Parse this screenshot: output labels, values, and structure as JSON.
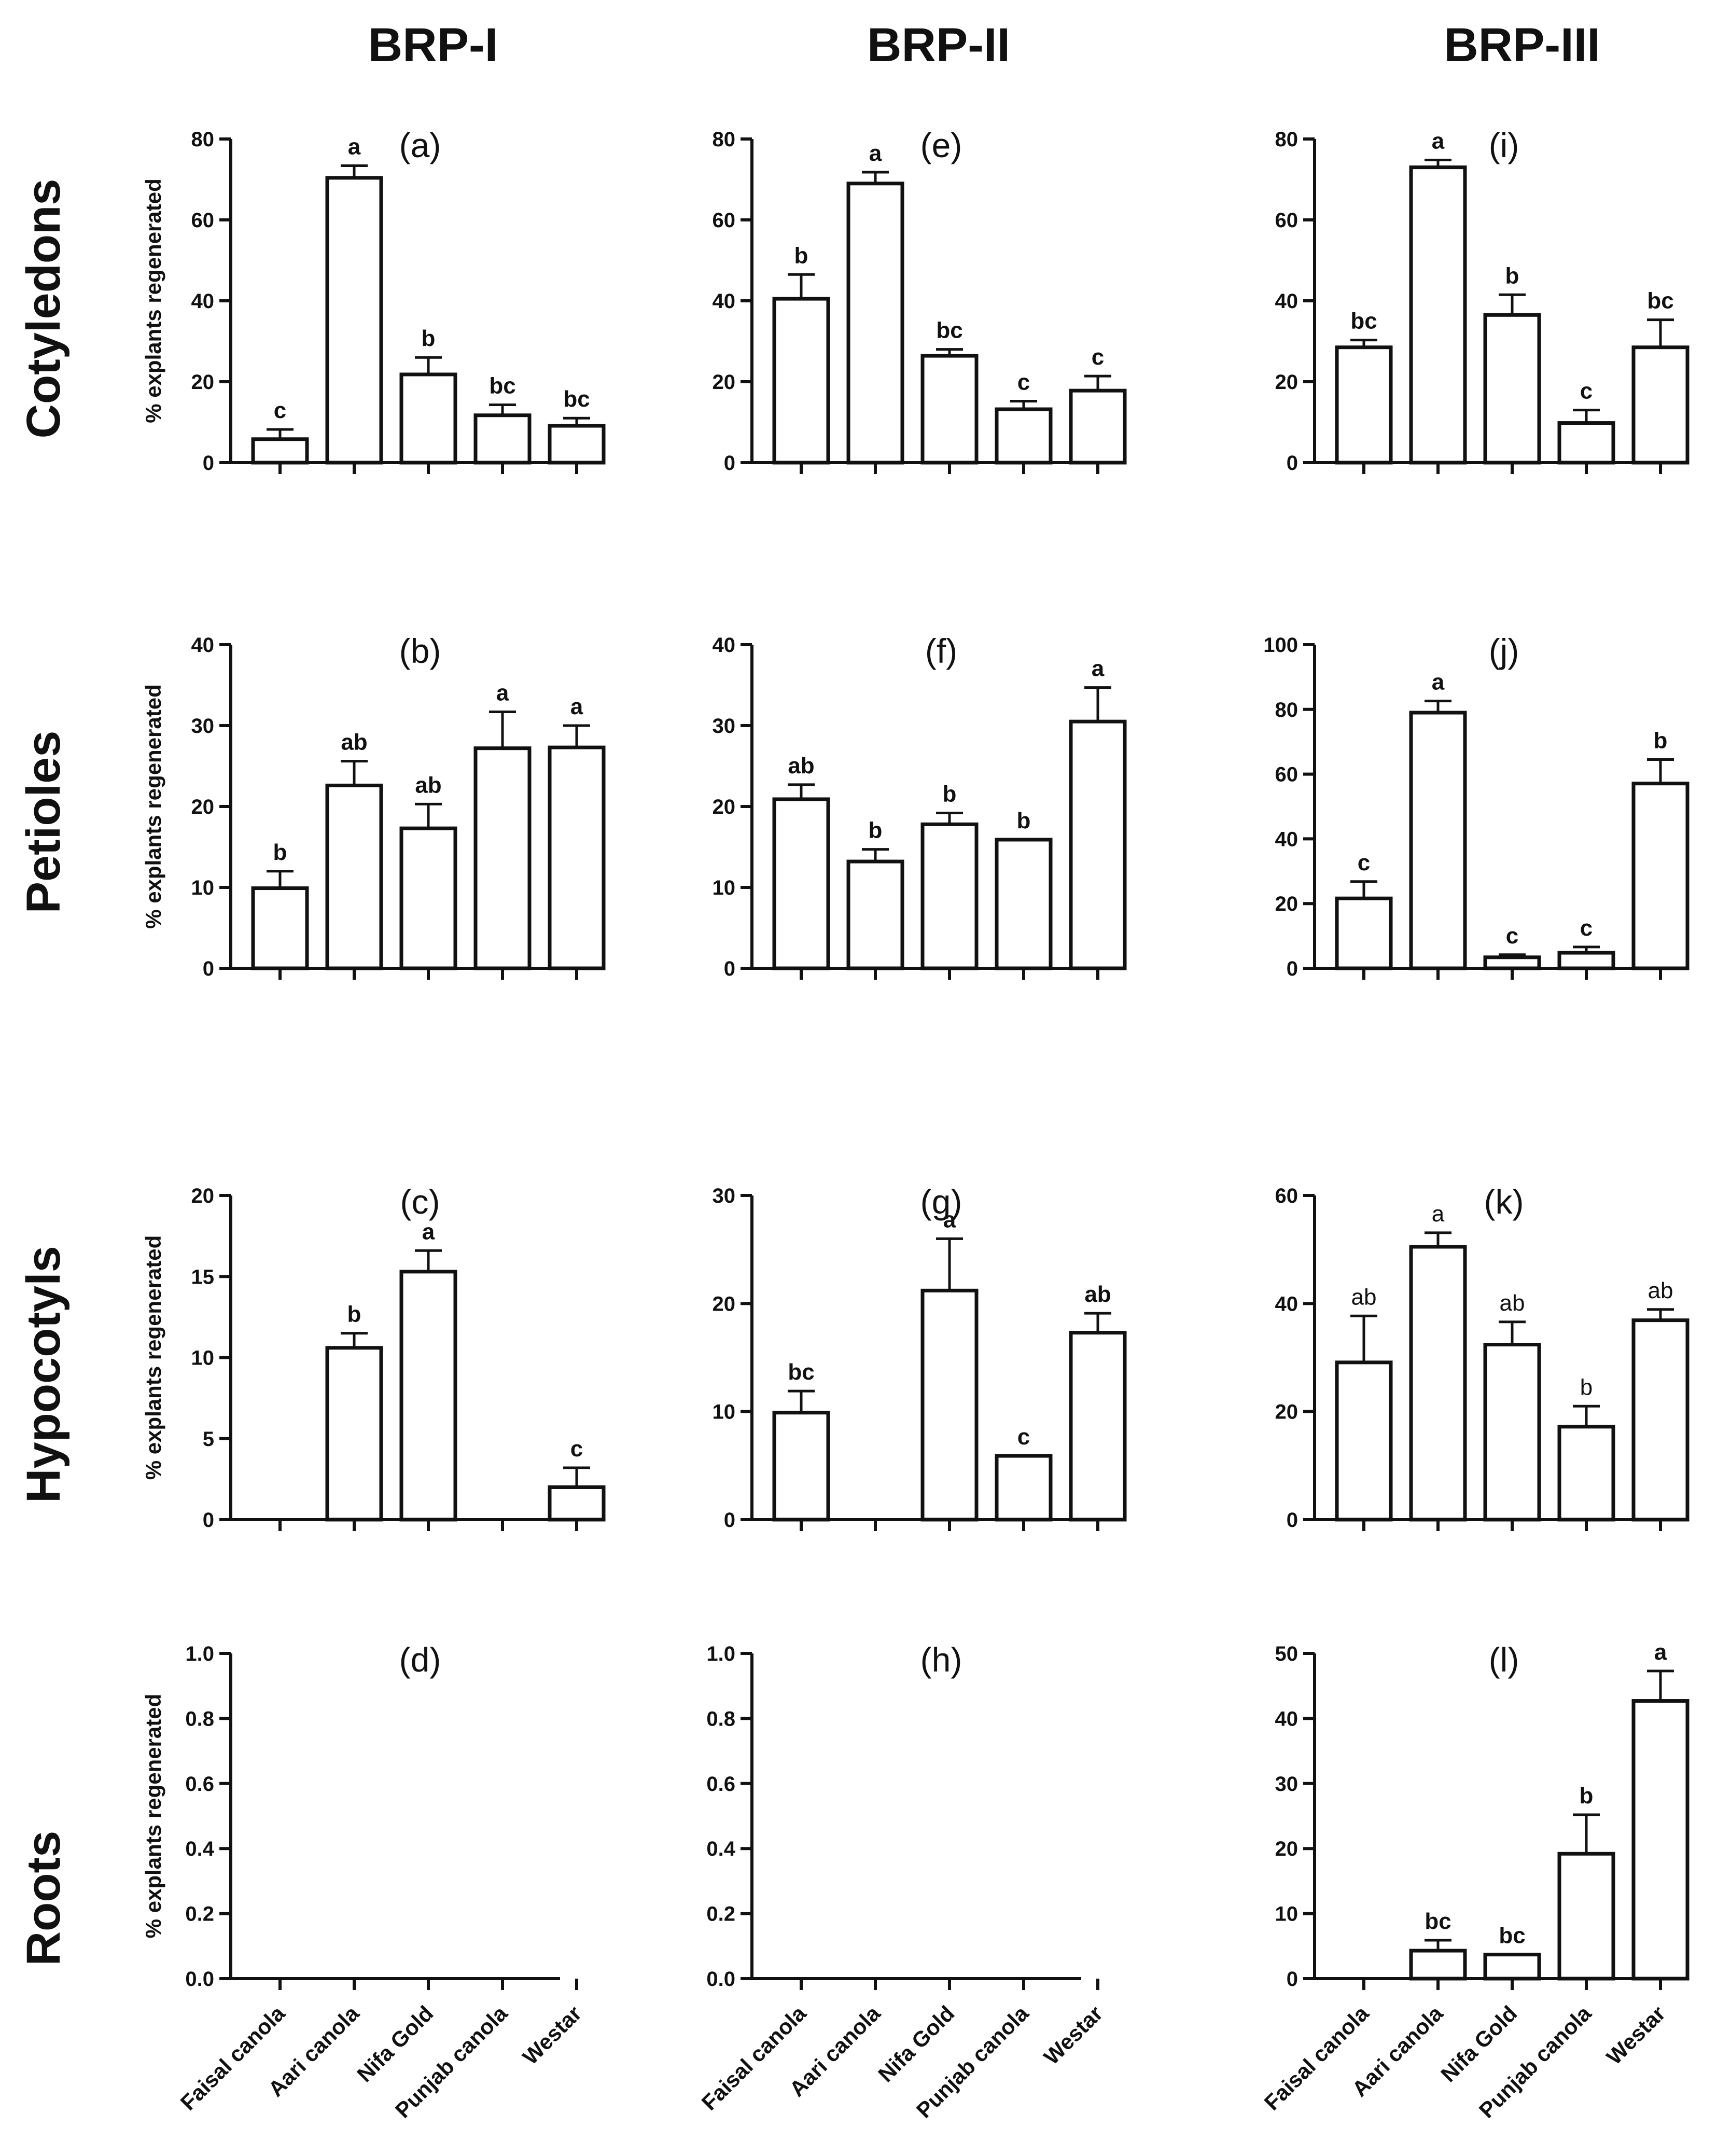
{
  "chart_data": {
    "type": "bar",
    "column_titles": [
      "BRP-I",
      "BRP-II",
      "BRP-III"
    ],
    "row_titles": [
      "Cotyledons",
      "Petioles",
      "Hypocotyls",
      "Roots"
    ],
    "categories": [
      "Faisal canola",
      "Aari canola",
      "Nifa Gold",
      "Punjab canola",
      "Westar"
    ],
    "ylabel": "% explants regenerated",
    "panels": [
      {
        "id": "a",
        "label": "(a)",
        "row": 0,
        "col": 0,
        "ylim": [
          0,
          80
        ],
        "yticks": [
          "0",
          "20",
          "40",
          "60",
          "80"
        ],
        "bold": true,
        "values": [
          5.8,
          70.4,
          21.8,
          11.7,
          9.1
        ],
        "errors": [
          2.4,
          3.0,
          4.2,
          2.6,
          1.9
        ],
        "letters": [
          "c",
          "a",
          "b",
          "bc",
          "bc"
        ]
      },
      {
        "id": "e",
        "label": "(e)",
        "row": 0,
        "col": 1,
        "ylim": [
          0,
          80
        ],
        "yticks": [
          "0",
          "20",
          "40",
          "60",
          "80"
        ],
        "bold": true,
        "values": [
          40.5,
          69.0,
          26.4,
          13.2,
          17.8
        ],
        "errors": [
          6.0,
          2.8,
          1.6,
          2.0,
          3.6
        ],
        "letters": [
          "b",
          "a",
          "bc",
          "c",
          "c"
        ]
      },
      {
        "id": "i",
        "label": "(i)",
        "row": 0,
        "col": 2,
        "ylim": [
          0,
          80
        ],
        "yticks": [
          "0",
          "20",
          "40",
          "60",
          "80"
        ],
        "bold": true,
        "values": [
          28.5,
          73.0,
          36.5,
          9.8,
          28.5
        ],
        "errors": [
          1.8,
          1.8,
          5.0,
          3.2,
          6.8
        ],
        "letters": [
          "bc",
          "a",
          "b",
          "c",
          "bc"
        ]
      },
      {
        "id": "b",
        "label": "(b)",
        "row": 1,
        "col": 0,
        "ylim": [
          0,
          40
        ],
        "yticks": [
          "0",
          "10",
          "20",
          "30",
          "40"
        ],
        "bold": true,
        "values": [
          9.9,
          22.6,
          17.3,
          27.2,
          27.3
        ],
        "errors": [
          2.1,
          3.0,
          3.0,
          4.5,
          2.7
        ],
        "letters": [
          "b",
          "ab",
          "ab",
          "a",
          "a"
        ]
      },
      {
        "id": "f",
        "label": "(f)",
        "row": 1,
        "col": 1,
        "ylim": [
          0,
          40
        ],
        "yticks": [
          "0",
          "10",
          "20",
          "30",
          "40"
        ],
        "bold": true,
        "values": [
          20.9,
          13.2,
          17.8,
          15.9,
          30.5
        ],
        "errors": [
          1.8,
          1.5,
          1.4,
          0.0,
          4.2
        ],
        "letters": [
          "ab",
          "b",
          "b",
          "b",
          "a"
        ]
      },
      {
        "id": "j",
        "label": "(j)",
        "row": 1,
        "col": 2,
        "ylim": [
          0,
          100
        ],
        "yticks": [
          "0",
          "20",
          "40",
          "60",
          "80",
          "100"
        ],
        "bold": true,
        "values": [
          21.6,
          79.0,
          3.4,
          4.8,
          57.1
        ],
        "errors": [
          5.2,
          3.6,
          0.8,
          1.8,
          7.4
        ],
        "letters": [
          "c",
          "a",
          "c",
          "c",
          "b"
        ]
      },
      {
        "id": "c",
        "label": "(c)",
        "row": 2,
        "col": 0,
        "ylim": [
          0,
          20
        ],
        "yticks": [
          "0",
          "5",
          "10",
          "15",
          "20"
        ],
        "bold": true,
        "values": [
          0,
          10.6,
          15.3,
          0,
          2.0
        ],
        "errors": [
          0,
          0.9,
          1.3,
          0,
          1.2
        ],
        "letters": [
          "",
          "b",
          "a",
          "",
          "c"
        ]
      },
      {
        "id": "g",
        "label": "(g)",
        "row": 2,
        "col": 1,
        "ylim": [
          0,
          30
        ],
        "yticks": [
          "0",
          "10",
          "20",
          "30"
        ],
        "bold": true,
        "values": [
          9.9,
          0,
          21.2,
          5.9,
          17.3
        ],
        "errors": [
          2.0,
          0,
          4.8,
          0,
          1.8
        ],
        "letters": [
          "bc",
          "",
          "a",
          "c",
          "ab"
        ]
      },
      {
        "id": "k",
        "label": "(k)",
        "row": 2,
        "col": 2,
        "ylim": [
          0,
          60
        ],
        "yticks": [
          "0",
          "20",
          "40",
          "60"
        ],
        "bold": false,
        "values": [
          29.1,
          50.5,
          32.4,
          17.2,
          36.9
        ],
        "errors": [
          8.6,
          2.6,
          4.2,
          3.8,
          2.0
        ],
        "letters": [
          "ab",
          "a",
          "ab",
          "b",
          "ab"
        ]
      },
      {
        "id": "d",
        "label": "(d)",
        "row": 3,
        "col": 0,
        "ylim": [
          0,
          1
        ],
        "yticks": [
          "0.0",
          "0.2",
          "0.4",
          "0.6",
          "0.8",
          "1.0"
        ],
        "bold": true,
        "values": [
          0,
          0,
          0,
          0,
          0
        ],
        "errors": [
          0,
          0,
          0,
          0,
          0
        ],
        "letters": [
          "",
          "",
          "",
          "",
          ""
        ]
      },
      {
        "id": "h",
        "label": "(h)",
        "row": 3,
        "col": 1,
        "ylim": [
          0,
          1
        ],
        "yticks": [
          "0.0",
          "0.2",
          "0.4",
          "0.6",
          "0.8",
          "1.0"
        ],
        "bold": true,
        "values": [
          0,
          0,
          0,
          0,
          0
        ],
        "errors": [
          0,
          0,
          0,
          0,
          0
        ],
        "letters": [
          "",
          "",
          "",
          "",
          ""
        ]
      },
      {
        "id": "l",
        "label": "(l)",
        "row": 3,
        "col": 2,
        "ylim": [
          0,
          50
        ],
        "yticks": [
          "0",
          "10",
          "20",
          "30",
          "40",
          "50"
        ],
        "bold": true,
        "values": [
          0,
          4.3,
          3.7,
          19.2,
          42.7
        ],
        "errors": [
          0,
          1.6,
          0.0,
          6.0,
          4.6
        ],
        "letters": [
          "",
          "bc",
          "bc",
          "b",
          "a"
        ]
      }
    ]
  }
}
